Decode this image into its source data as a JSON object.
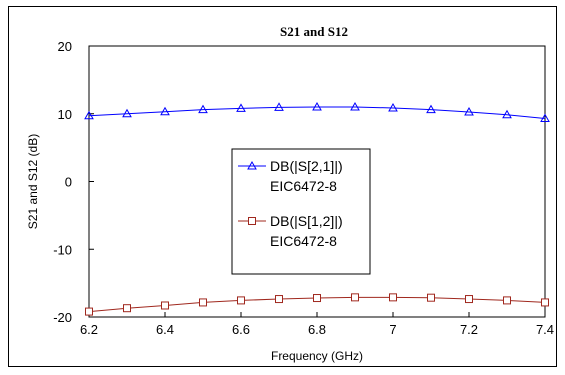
{
  "chart_data": {
    "type": "line",
    "title": "S21 and S12",
    "xlabel": "Frequency (GHz)",
    "ylabel": "S21 and S12 (dB)",
    "xlim": [
      6.2,
      7.4
    ],
    "ylim": [
      -20,
      20
    ],
    "x_ticks": [
      "6.2",
      "6.4",
      "6.6",
      "6.8",
      "7",
      "7.2",
      "7.4"
    ],
    "y_ticks": [
      "20",
      "10",
      "0",
      "-10",
      "-20"
    ],
    "grid": false,
    "legend_position": "center-left",
    "x": [
      6.2,
      6.3,
      6.4,
      6.5,
      6.6,
      6.7,
      6.8,
      6.9,
      7.0,
      7.1,
      7.2,
      7.3,
      7.4
    ],
    "series": [
      {
        "name": "DB(|S[2,1]|)",
        "sub": "EIC6472-8",
        "color": "#0000ff",
        "marker": "triangle",
        "values": [
          9.7,
          10.0,
          10.3,
          10.6,
          10.8,
          10.95,
          11.0,
          11.0,
          10.85,
          10.6,
          10.25,
          9.85,
          9.3
        ]
      },
      {
        "name": "DB(|S[1,2]|)",
        "sub": "EIC6472-8",
        "color": "#a0281e",
        "marker": "square",
        "values": [
          -19.2,
          -18.7,
          -18.3,
          -17.85,
          -17.55,
          -17.35,
          -17.2,
          -17.1,
          -17.1,
          -17.15,
          -17.35,
          -17.55,
          -17.85
        ]
      }
    ]
  }
}
